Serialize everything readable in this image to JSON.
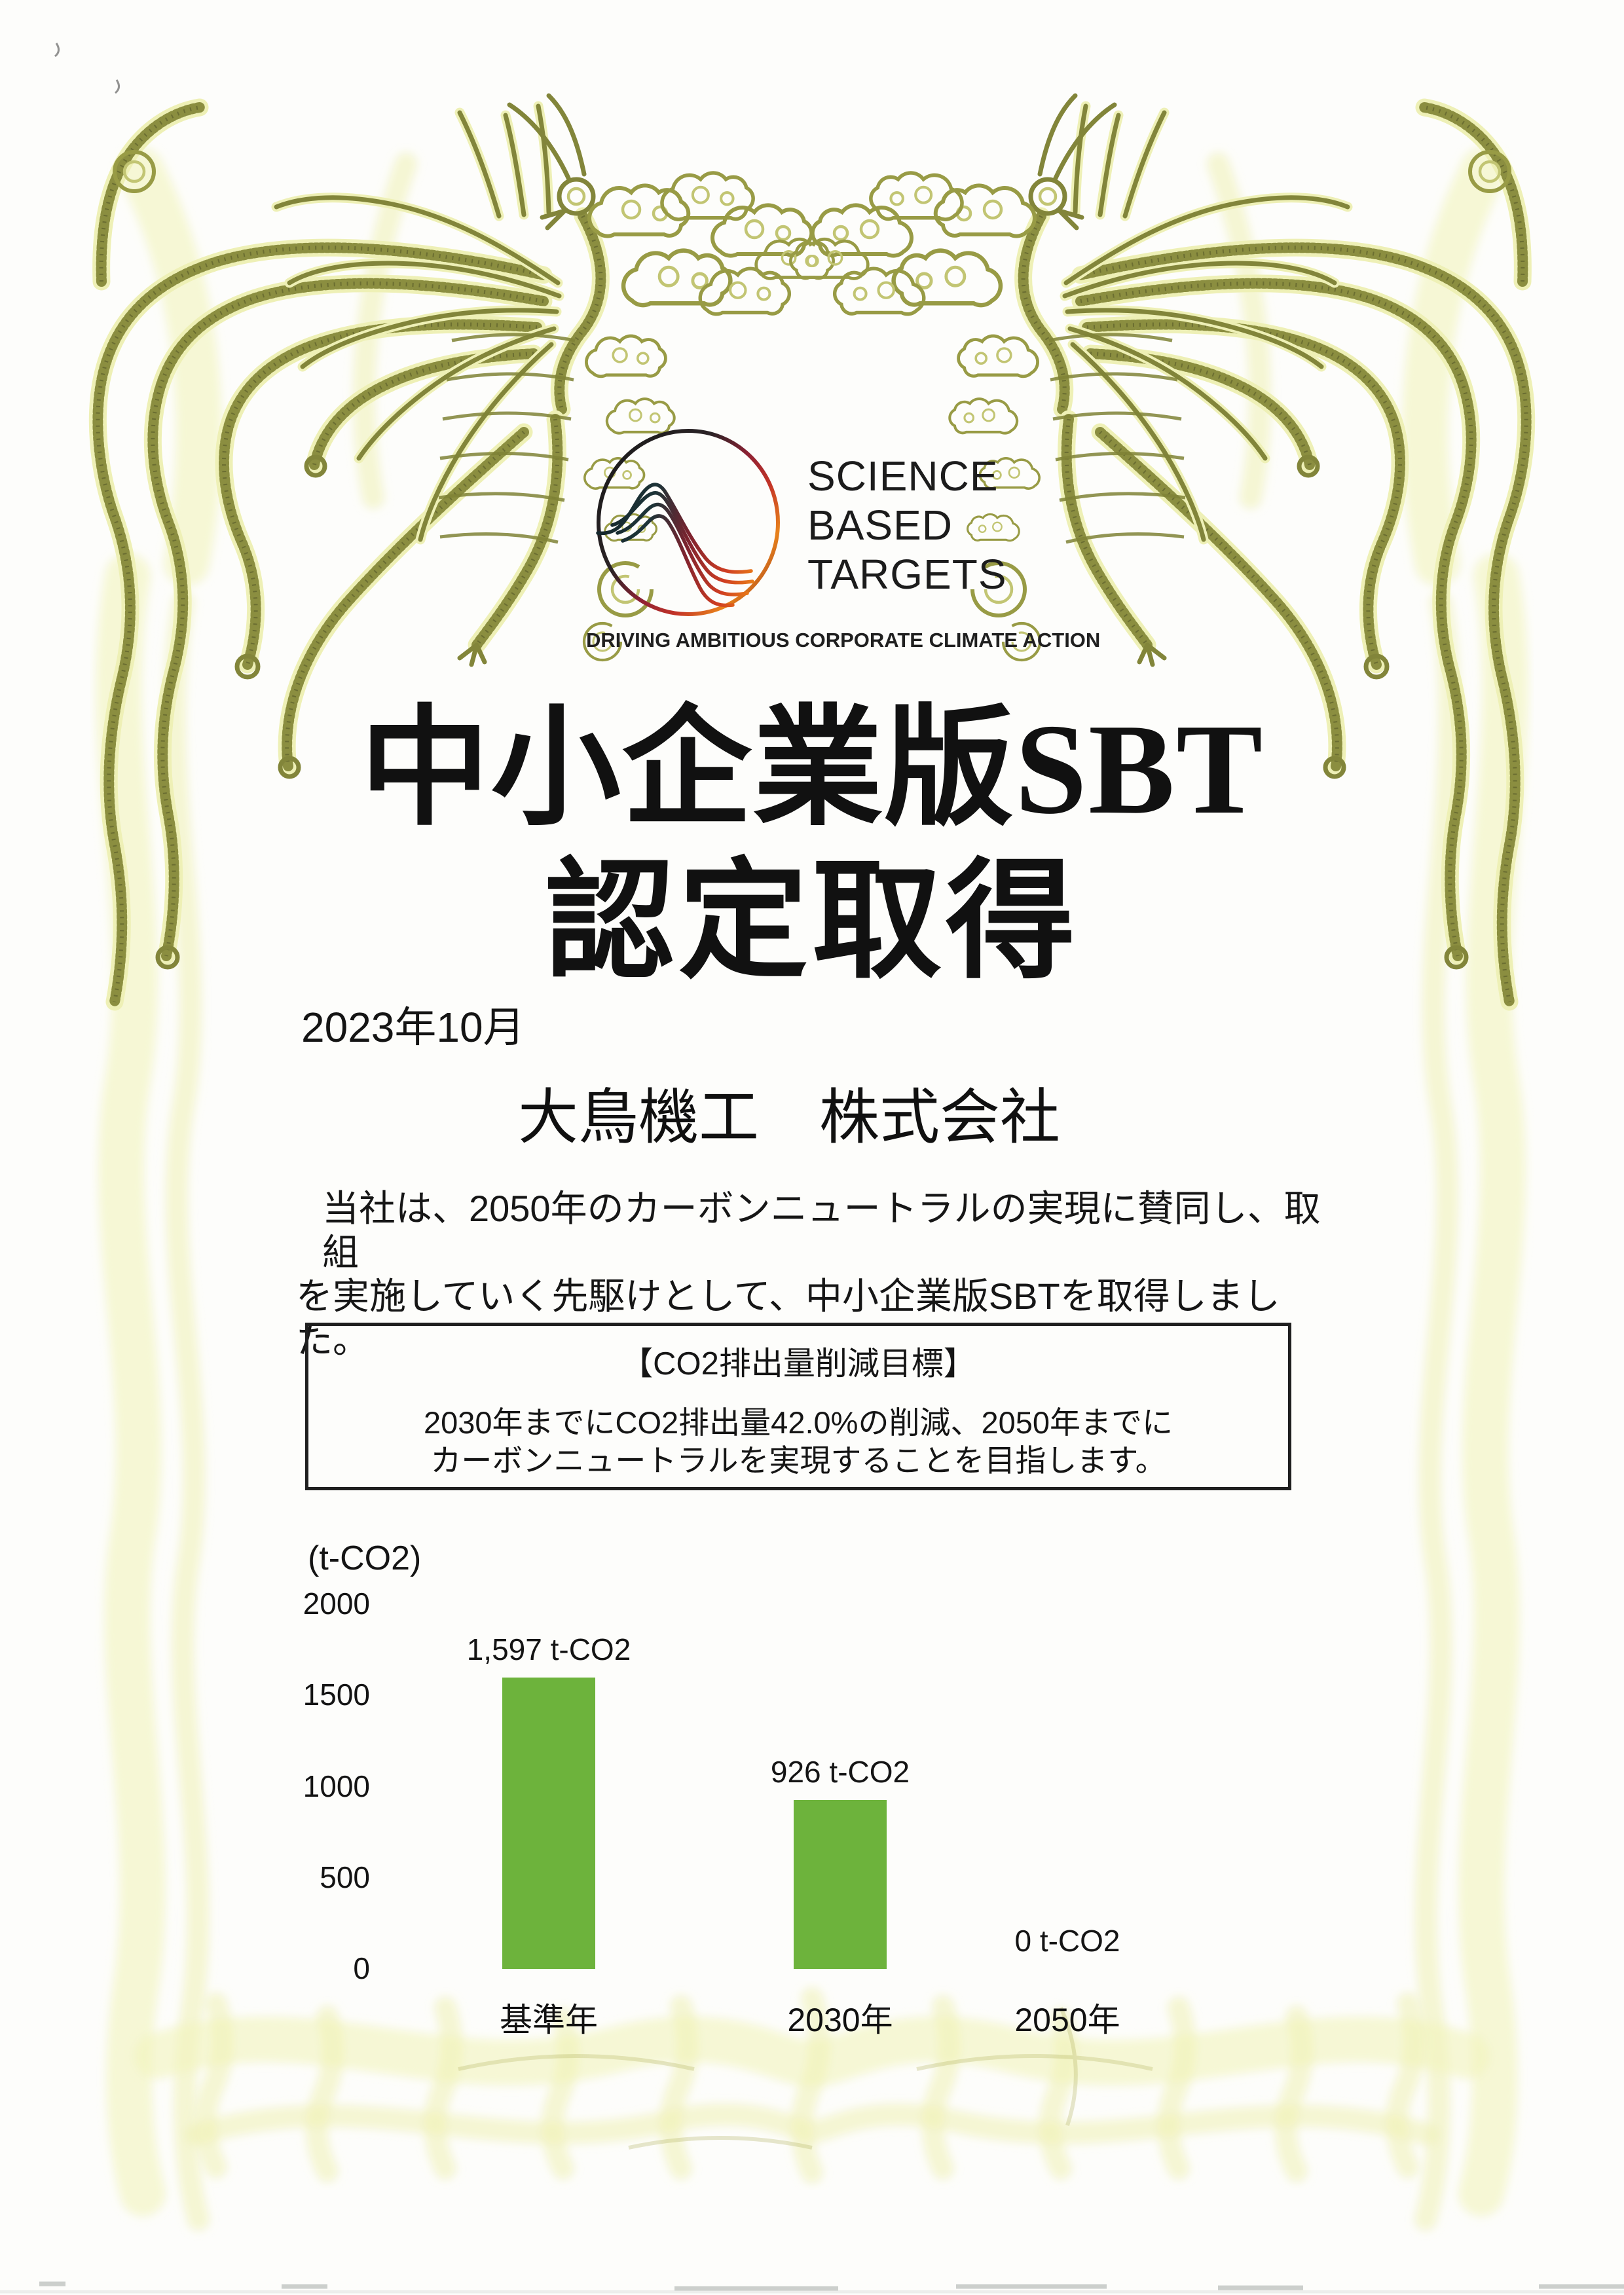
{
  "certificate": {
    "logo": {
      "line1": "SCIENCE",
      "line2": "BASED",
      "line3": "TARGETS",
      "tagline": "DRIVING AMBITIOUS CORPORATE CLIMATE ACTION"
    },
    "title_line1": "中小企業版SBT",
    "title_line2": "認定取得",
    "date": "2023年10月",
    "company": "大鳥機工　株式会社",
    "statement_line1": "当社は、2050年のカーボンニュートラルの実現に賛同し、取組",
    "statement_line2": "を実施していく先駆けとして、中小企業版SBTを取得しました。",
    "target_box": {
      "title": "【CO2排出量削減目標】",
      "body_line1": "2030年までにCO2排出量42.0%の削減、2050年までに",
      "body_line2": "カーボンニュートラルを実現することを目指します。"
    }
  },
  "chart_data": {
    "type": "bar",
    "title": "",
    "unit_label": "(t-CO2)",
    "categories": [
      "基準年",
      "2030年",
      "2050年"
    ],
    "values": [
      1597,
      926,
      0
    ],
    "value_labels": [
      "1,597 t-CO2",
      "926 t-CO2",
      "0 t-CO2"
    ],
    "y_ticks": [
      2000,
      1500,
      1000,
      500,
      0
    ],
    "ylim": [
      0,
      2000
    ],
    "xlabel": "",
    "ylabel": "(t-CO2)",
    "grid": false,
    "legend": false,
    "bar_color": "#6db33c"
  },
  "colors": {
    "border_olive": "#8b8e40",
    "border_pale": "#eef0b6",
    "bar_green": "#6db33c",
    "text": "#1a1a1a"
  }
}
